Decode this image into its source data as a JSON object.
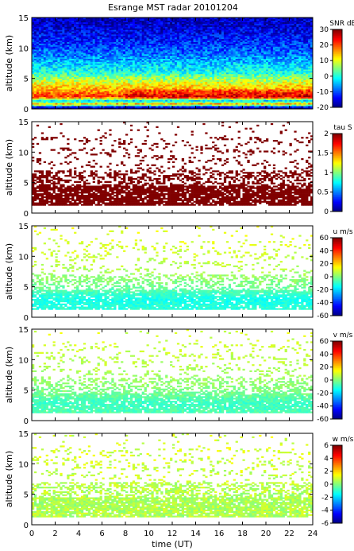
{
  "figure": {
    "title": "Esrange MST radar 20101204"
  },
  "chart_data": [
    {
      "type": "heatmap",
      "quantity": "SNR",
      "ylabel": "altitude (km)",
      "ylim": [
        0,
        15
      ],
      "yticks": [
        "0",
        "5",
        "10",
        "15"
      ],
      "xlabel": "",
      "xlim": [
        0,
        24
      ],
      "colorbar": {
        "label": "SNR dB",
        "range": [
          -20,
          30
        ],
        "ticks": [
          "30",
          "20",
          "10",
          "0",
          "-10",
          "-20"
        ]
      },
      "profile": [
        {
          "alt": 0.3,
          "value": -18
        },
        {
          "alt": 0.8,
          "value": 18
        },
        {
          "alt": 1.3,
          "value": -5
        },
        {
          "alt": 2.0,
          "value": 22
        },
        {
          "alt": 3.0,
          "value": 16
        },
        {
          "alt": 4.0,
          "value": 12
        },
        {
          "alt": 5.0,
          "value": 6
        },
        {
          "alt": 6.0,
          "value": 0
        },
        {
          "alt": 7.5,
          "value": -4
        },
        {
          "alt": 9.0,
          "value": -8
        },
        {
          "alt": 11.0,
          "value": -12
        },
        {
          "alt": 13.0,
          "value": -15
        },
        {
          "alt": 15.0,
          "value": -17
        }
      ]
    },
    {
      "type": "heatmap",
      "quantity": "tau",
      "ylabel": "altitude (km)",
      "ylim": [
        0,
        15
      ],
      "yticks": [
        "0",
        "5",
        "10",
        "15"
      ],
      "xlabel": "",
      "xlim": [
        0,
        24
      ],
      "colorbar": {
        "label": "tau S",
        "range": [
          0,
          2
        ],
        "ticks": [
          "2",
          "1.5",
          "1",
          "0.5",
          "0"
        ]
      },
      "typical_value": 2.0
    },
    {
      "type": "heatmap",
      "quantity": "u",
      "ylabel": "altitude (km)",
      "ylim": [
        0,
        15
      ],
      "yticks": [
        "0",
        "5",
        "10",
        "15"
      ],
      "xlabel": "",
      "xlim": [
        0,
        24
      ],
      "colorbar": {
        "label": "u m/s",
        "range": [
          -60,
          60
        ],
        "ticks": [
          "60",
          "40",
          "20",
          "0",
          "-20",
          "-40",
          "-60"
        ]
      },
      "profile": [
        {
          "alt": 1.5,
          "value": -10
        },
        {
          "alt": 3.0,
          "value": -13
        },
        {
          "alt": 5.0,
          "value": -2
        },
        {
          "alt": 8.0,
          "value": 6
        },
        {
          "alt": 11.0,
          "value": 10
        },
        {
          "alt": 14.0,
          "value": 12
        }
      ]
    },
    {
      "type": "heatmap",
      "quantity": "v",
      "ylabel": "altitude (km)",
      "ylim": [
        0,
        15
      ],
      "yticks": [
        "0",
        "5",
        "10",
        "15"
      ],
      "xlabel": "",
      "xlim": [
        0,
        24
      ],
      "colorbar": {
        "label": "v m/s",
        "range": [
          -60,
          60
        ],
        "ticks": [
          "60",
          "40",
          "20",
          "0",
          "-20",
          "-40",
          "-60"
        ]
      },
      "profile": [
        {
          "alt": 1.5,
          "value": -6
        },
        {
          "alt": 3.0,
          "value": -8
        },
        {
          "alt": 5.0,
          "value": 0
        },
        {
          "alt": 8.0,
          "value": 5
        },
        {
          "alt": 11.0,
          "value": 8
        },
        {
          "alt": 14.0,
          "value": 10
        }
      ]
    },
    {
      "type": "heatmap",
      "quantity": "w",
      "ylabel": "altitude (km)",
      "ylim": [
        0,
        15
      ],
      "yticks": [
        "0",
        "5",
        "10",
        "15"
      ],
      "xlabel": "time (UT)",
      "xlim": [
        0,
        24
      ],
      "xticks": [
        "0",
        "2",
        "4",
        "6",
        "8",
        "10",
        "12",
        "14",
        "16",
        "18",
        "20",
        "22",
        "24"
      ],
      "colorbar": {
        "label": "w m/s",
        "range": [
          -6,
          6
        ],
        "ticks": [
          "6",
          "4",
          "2",
          "0",
          "-2",
          "-4",
          "-6"
        ]
      },
      "profile": [
        {
          "alt": 1.5,
          "value": 0.6
        },
        {
          "alt": 4.0,
          "value": 0.5
        },
        {
          "alt": 8.0,
          "value": 0.8
        },
        {
          "alt": 12.0,
          "value": 1.0
        }
      ]
    }
  ]
}
